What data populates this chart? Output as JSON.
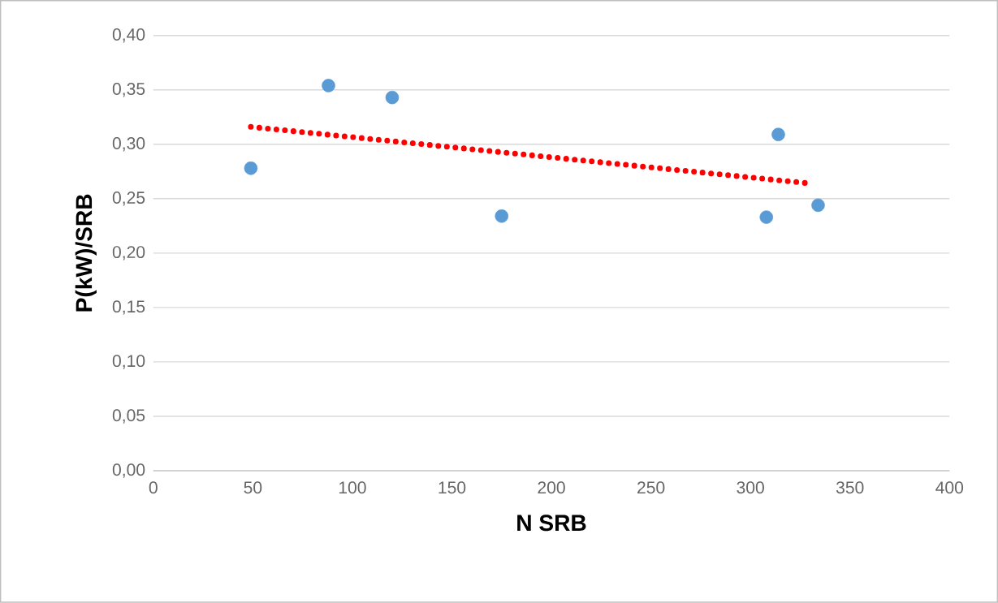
{
  "chart_data": {
    "type": "scatter",
    "xlabel": "N SRB",
    "ylabel": "P(kW)/SRB",
    "xlim": [
      0,
      400
    ],
    "ylim": [
      0,
      0.4
    ],
    "xticks": [
      0,
      50,
      100,
      150,
      200,
      250,
      300,
      350,
      400
    ],
    "yticks": [
      {
        "value": 0,
        "label": "0,00"
      },
      {
        "value": 0.05,
        "label": "0,05"
      },
      {
        "value": 0.1,
        "label": "0,10"
      },
      {
        "value": 0.15,
        "label": "0,15"
      },
      {
        "value": 0.2,
        "label": "0,20"
      },
      {
        "value": 0.25,
        "label": "0,25"
      },
      {
        "value": 0.3,
        "label": "0,30"
      },
      {
        "value": 0.35,
        "label": "0,35"
      },
      {
        "value": 0.4,
        "label": "0,40"
      }
    ],
    "grid": "y",
    "series": [
      {
        "color": "#5b9bd5",
        "marker": "circle",
        "x": [
          49,
          88,
          120,
          175,
          308,
          314,
          334
        ],
        "values": [
          0.278,
          0.354,
          0.343,
          0.234,
          0.233,
          0.309,
          0.244
        ]
      },
      {
        "type": "line",
        "color": "#ff0000",
        "marker": "none",
        "line_style": "dotted",
        "x": [
          49,
          330
        ],
        "values": [
          0.316,
          0.264
        ]
      }
    ]
  }
}
